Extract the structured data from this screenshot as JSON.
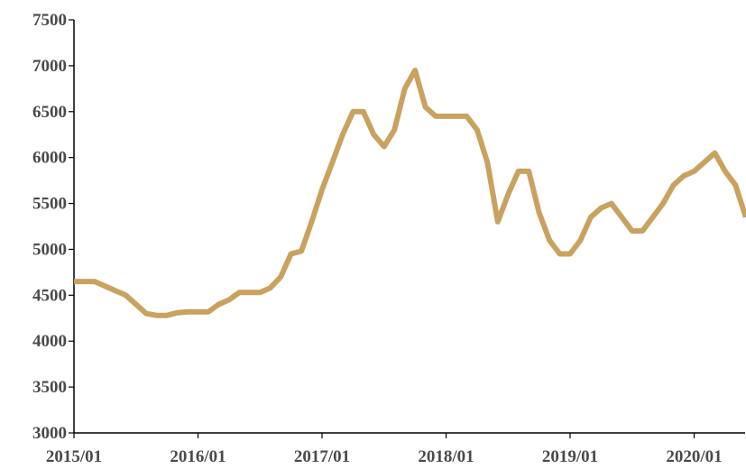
{
  "chart_data": {
    "type": "line",
    "title": "",
    "xlabel": "",
    "ylabel": "",
    "grid": false,
    "legend": "none",
    "line_color": "#C9A25F",
    "axis_color": "#000000",
    "ylim": [
      3000,
      7500
    ],
    "yticks": [
      3000,
      3500,
      4000,
      4500,
      5000,
      5500,
      6000,
      6500,
      7000,
      7500
    ],
    "xlim": [
      "2015-01",
      "2020-06"
    ],
    "xticks": [
      "2015/01",
      "2016/01",
      "2017/01",
      "2018/01",
      "2019/01",
      "2020/01"
    ],
    "series": [
      {
        "x": [
          "2015-01",
          "2015-03",
          "2015-05",
          "2015-06",
          "2015-07",
          "2015-08",
          "2015-09",
          "2015-10",
          "2015-11",
          "2015-12",
          "2016-01",
          "2016-02",
          "2016-03",
          "2016-04",
          "2016-05",
          "2016-06",
          "2016-07",
          "2016-08",
          "2016-09",
          "2016-10",
          "2016-11",
          "2016-12",
          "2017-01",
          "2017-02",
          "2017-03",
          "2017-04",
          "2017-05",
          "2017-06",
          "2017-07",
          "2017-08",
          "2017-09",
          "2017-10",
          "2017-11",
          "2017-12",
          "2018-01",
          "2018-02",
          "2018-03",
          "2018-04",
          "2018-05",
          "2018-06",
          "2018-07",
          "2018-08",
          "2018-09",
          "2018-10",
          "2018-11",
          "2018-12",
          "2019-01",
          "2019-02",
          "2019-03",
          "2019-04",
          "2019-05",
          "2019-06",
          "2019-07",
          "2019-08",
          "2019-09",
          "2019-10",
          "2019-11",
          "2019-12",
          "2020-01",
          "2020-02",
          "2020-03",
          "2020-04",
          "2020-05",
          "2020-06"
        ],
        "y": [
          4650,
          4650,
          4550,
          4500,
          4400,
          4300,
          4280,
          4280,
          4310,
          4320,
          4320,
          4320,
          4400,
          4450,
          4530,
          4530,
          4530,
          4580,
          4700,
          4950,
          4980,
          5300,
          5650,
          5950,
          6250,
          6500,
          6500,
          6250,
          6120,
          6300,
          6750,
          6950,
          6550,
          6450,
          6450,
          6450,
          6450,
          6300,
          5950,
          5300,
          5600,
          5850,
          5850,
          5400,
          5100,
          4950,
          4950,
          5100,
          5350,
          5450,
          5500,
          5350,
          5200,
          5200,
          5350,
          5500,
          5700,
          5800,
          5850,
          5950,
          6050,
          5850,
          5700,
          5350
        ]
      }
    ]
  }
}
